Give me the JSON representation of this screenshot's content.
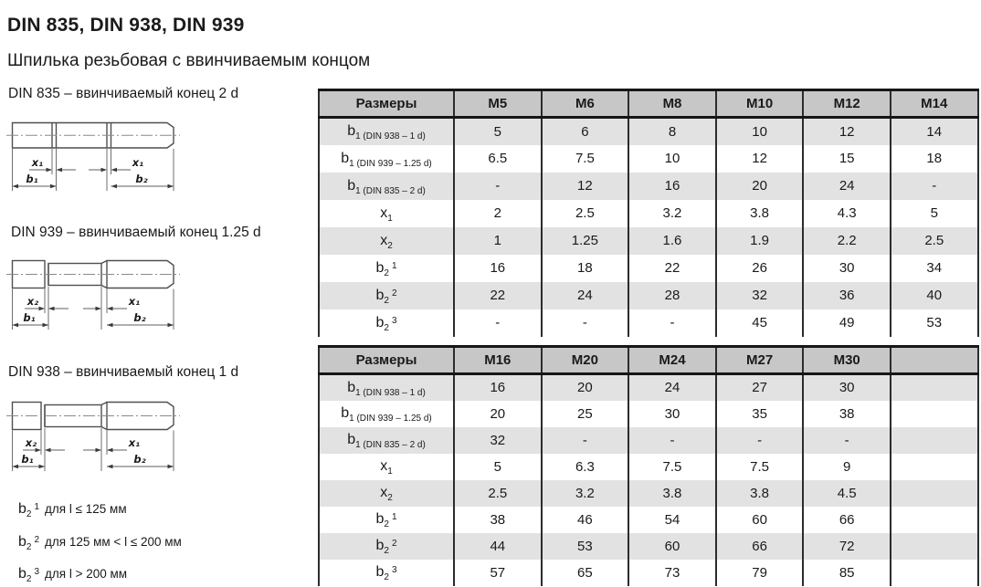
{
  "page": {
    "title": "DIN 835, DIN 938, DIN 939",
    "subtitle": "Шпилька резьбовая с ввинчиваемым концом"
  },
  "figures": [
    {
      "caption": "DIN 835 – ввинчиваемый конец 2 d",
      "labels": {
        "left_x": "x₁",
        "right_x": "x₁",
        "left_b": "b₁",
        "right_b": "b₂"
      }
    },
    {
      "caption": "DIN 939 – ввинчиваемый конец 1.25 d",
      "labels": {
        "left_x": "x₂",
        "right_x": "x₁",
        "left_b": "b₁",
        "right_b": "b₂"
      }
    },
    {
      "caption": "DIN 938 – ввинчиваемый конец 1 d",
      "labels": {
        "left_x": "x₂",
        "right_x": "x₁",
        "left_b": "b₁",
        "right_b": "b₂"
      }
    }
  ],
  "footnotes": [
    {
      "base": "b",
      "sub": "2",
      "sup": "1",
      "text": "для l ≤ 125 мм"
    },
    {
      "base": "b",
      "sub": "2",
      "sup": "2",
      "text": "для 125 мм < l ≤ 200 мм"
    },
    {
      "base": "b",
      "sub": "2",
      "sup": "3",
      "text": "для l > 200 мм"
    }
  ],
  "tables": [
    {
      "name": "sizes-m5-m14",
      "header": [
        "Размеры",
        "M5",
        "M6",
        "M8",
        "M10",
        "M12",
        "M14"
      ],
      "rows": [
        {
          "label": {
            "base": "b",
            "sub": "1 (DIN 938 – 1 d)",
            "sup": ""
          },
          "values": [
            "5",
            "6",
            "8",
            "10",
            "12",
            "14"
          ]
        },
        {
          "label": {
            "base": "b",
            "sub": "1 (DIN 939 – 1.25 d)",
            "sup": ""
          },
          "values": [
            "6.5",
            "7.5",
            "10",
            "12",
            "15",
            "18"
          ]
        },
        {
          "label": {
            "base": "b",
            "sub": "1 (DIN 835 – 2 d)",
            "sup": ""
          },
          "values": [
            "-",
            "12",
            "16",
            "20",
            "24",
            "-"
          ]
        },
        {
          "label": {
            "base": "x",
            "sub": "1",
            "sup": ""
          },
          "values": [
            "2",
            "2.5",
            "3.2",
            "3.8",
            "4.3",
            "5"
          ]
        },
        {
          "label": {
            "base": "x",
            "sub": "2",
            "sup": ""
          },
          "values": [
            "1",
            "1.25",
            "1.6",
            "1.9",
            "2.2",
            "2.5"
          ]
        },
        {
          "label": {
            "base": "b",
            "sub": "2",
            "sup": "1"
          },
          "values": [
            "16",
            "18",
            "22",
            "26",
            "30",
            "34"
          ]
        },
        {
          "label": {
            "base": "b",
            "sub": "2",
            "sup": "2"
          },
          "values": [
            "22",
            "24",
            "28",
            "32",
            "36",
            "40"
          ]
        },
        {
          "label": {
            "base": "b",
            "sub": "2",
            "sup": "3"
          },
          "values": [
            "-",
            "-",
            "-",
            "45",
            "49",
            "53"
          ]
        }
      ]
    },
    {
      "name": "sizes-m16-m30",
      "header": [
        "Размеры",
        "M16",
        "M20",
        "M24",
        "M27",
        "M30",
        ""
      ],
      "rows": [
        {
          "label": {
            "base": "b",
            "sub": "1 (DIN 938 – 1 d)",
            "sup": ""
          },
          "values": [
            "16",
            "20",
            "24",
            "27",
            "30",
            ""
          ]
        },
        {
          "label": {
            "base": "b",
            "sub": "1 (DIN 939 – 1.25 d)",
            "sup": ""
          },
          "values": [
            "20",
            "25",
            "30",
            "35",
            "38",
            ""
          ]
        },
        {
          "label": {
            "base": "b",
            "sub": "1 (DIN 835 – 2 d)",
            "sup": ""
          },
          "values": [
            "32",
            "-",
            "-",
            "-",
            "-",
            ""
          ]
        },
        {
          "label": {
            "base": "x",
            "sub": "1",
            "sup": ""
          },
          "values": [
            "5",
            "6.3",
            "7.5",
            "7.5",
            "9",
            ""
          ]
        },
        {
          "label": {
            "base": "x",
            "sub": "2",
            "sup": ""
          },
          "values": [
            "2.5",
            "3.2",
            "3.8",
            "3.8",
            "4.5",
            ""
          ]
        },
        {
          "label": {
            "base": "b",
            "sub": "2",
            "sup": "1"
          },
          "values": [
            "38",
            "46",
            "54",
            "60",
            "66",
            ""
          ]
        },
        {
          "label": {
            "base": "b",
            "sub": "2",
            "sup": "2"
          },
          "values": [
            "44",
            "53",
            "60",
            "66",
            "72",
            ""
          ]
        },
        {
          "label": {
            "base": "b",
            "sub": "2",
            "sup": "3"
          },
          "values": [
            "57",
            "65",
            "73",
            "79",
            "85",
            ""
          ]
        }
      ]
    }
  ],
  "colors": {
    "header_bg": "#c7c7c7",
    "stripe_bg": "#e2e2e2",
    "border": "#2c2c2c"
  }
}
